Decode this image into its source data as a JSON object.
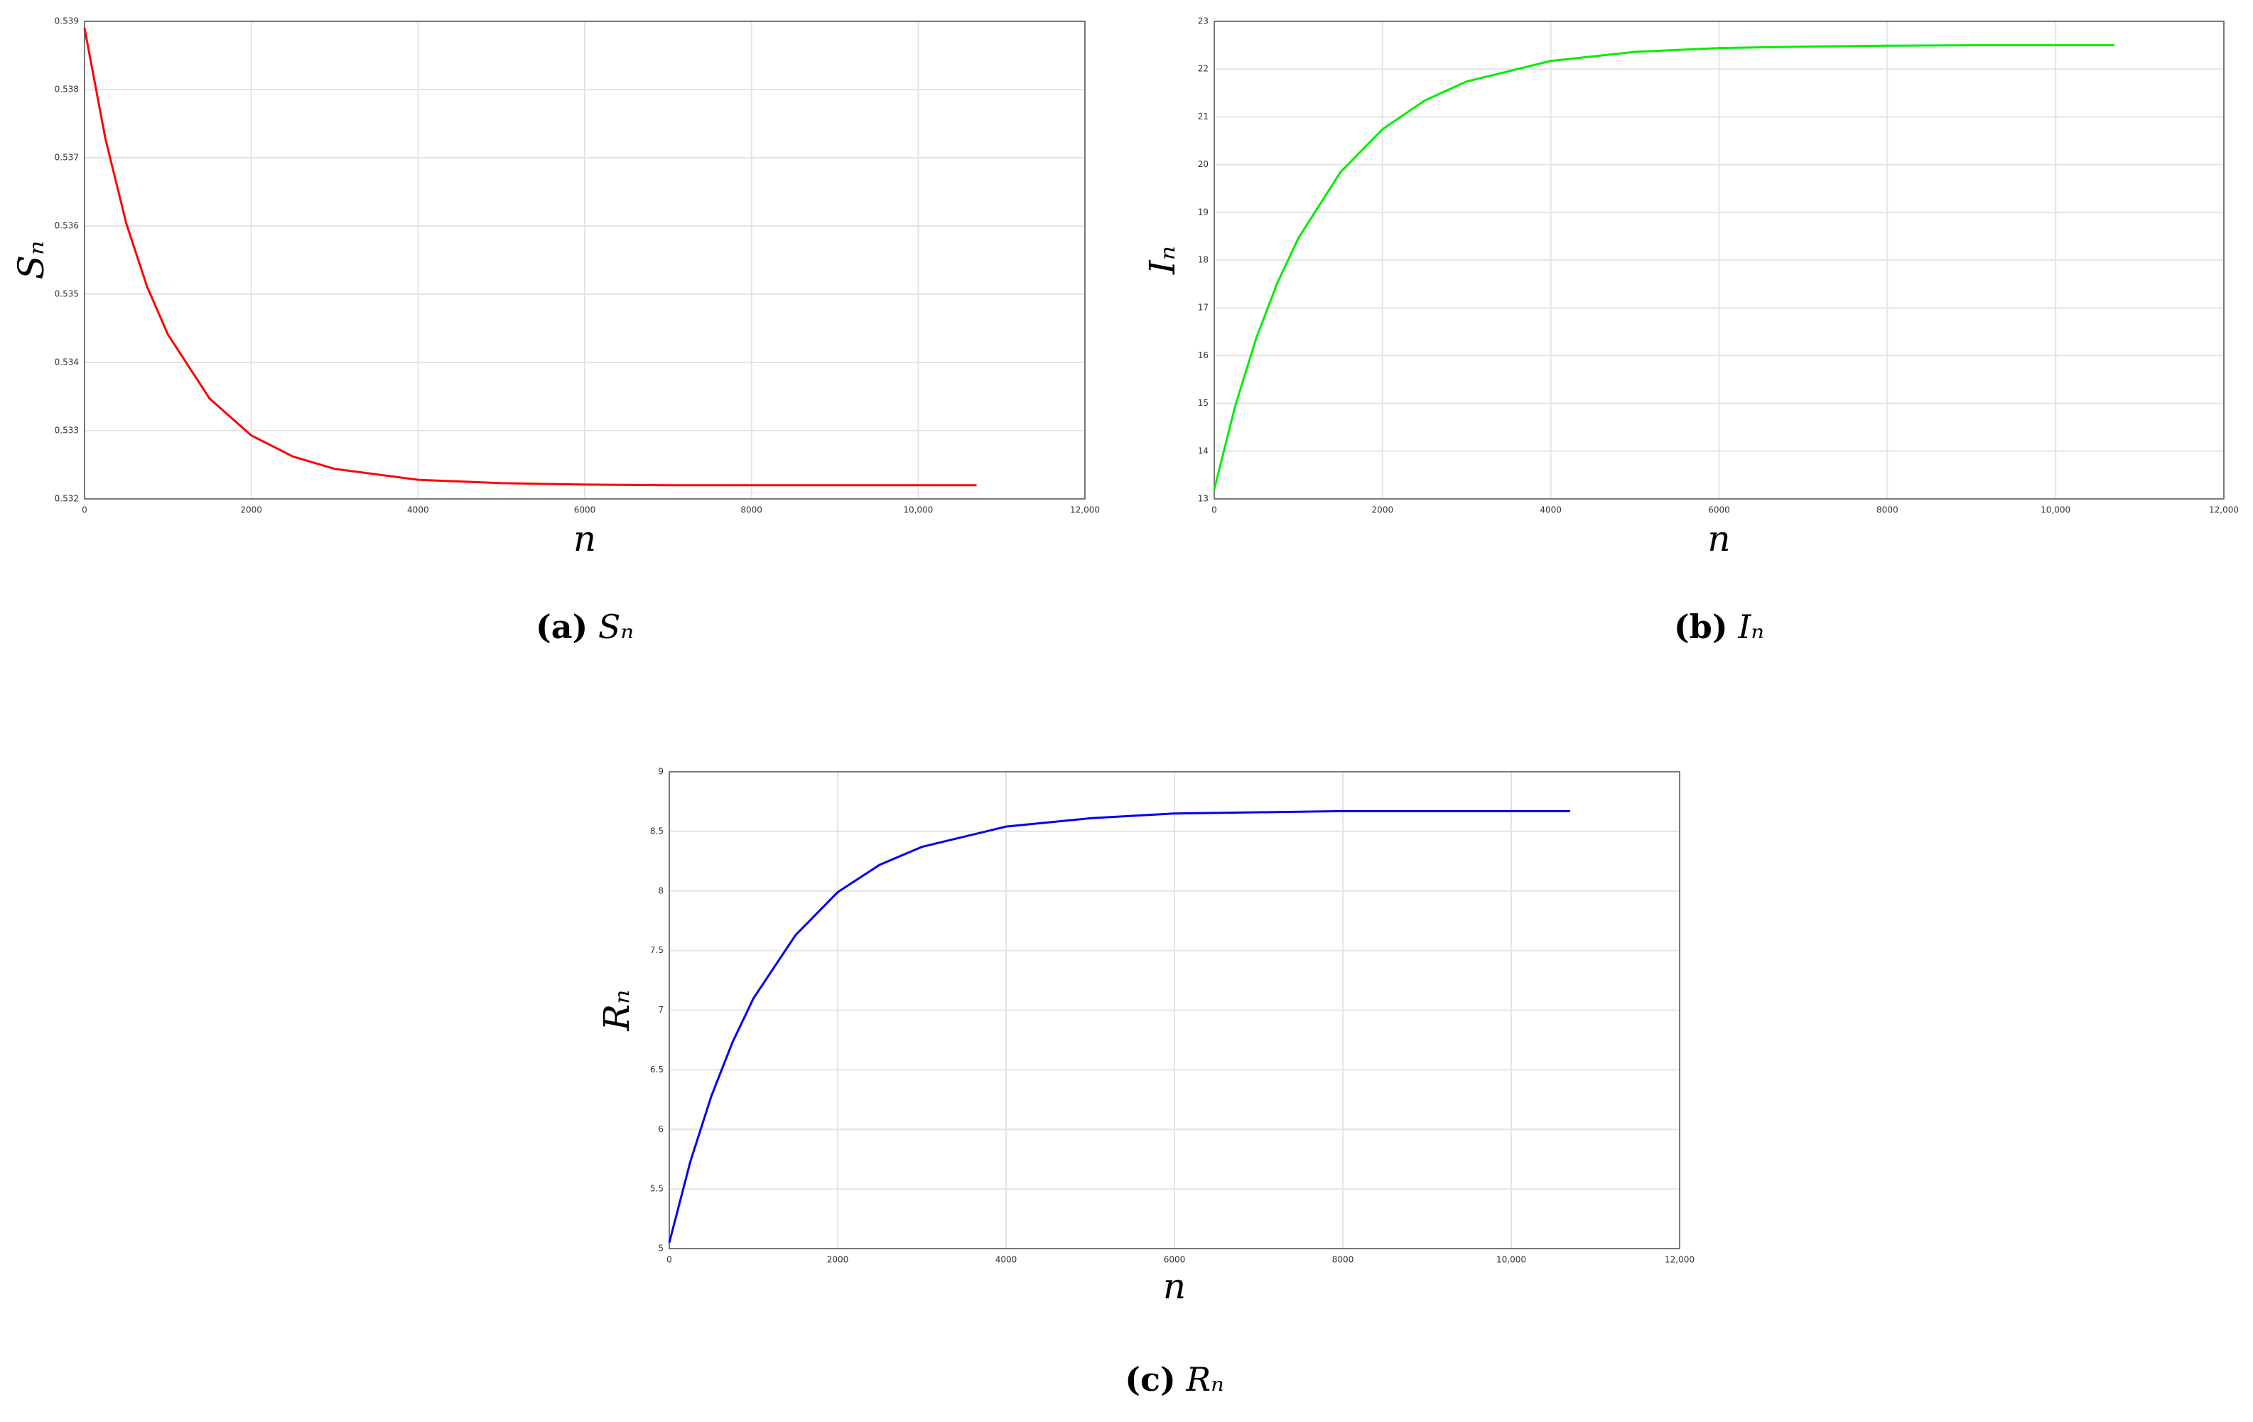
{
  "chart_data": [
    {
      "type": "line",
      "ylabel": "Sₙ",
      "xlabel": "n",
      "caption": {
        "label": "(a)",
        "text": "Sₙ"
      },
      "color": "#ff0000",
      "grid": true,
      "x": [
        0,
        250,
        500,
        750,
        1000,
        1500,
        2000,
        2500,
        3000,
        4000,
        5000,
        6000,
        7000,
        8000,
        9000,
        10000,
        10700
      ],
      "values": [
        0.5389,
        0.53728,
        0.53604,
        0.53511,
        0.53441,
        0.53347,
        0.53293,
        0.53262,
        0.53244,
        0.53228,
        0.53223,
        0.53221,
        0.5322,
        0.5322,
        0.5322,
        0.5322,
        0.5322
      ],
      "xlim": [
        0,
        12000
      ],
      "xticks": [
        0,
        2000,
        4000,
        6000,
        8000,
        {
          "value": 10000,
          "label": "10,000"
        },
        {
          "value": 12000,
          "label": "12,000"
        }
      ],
      "ylim": [
        0.532,
        0.539
      ],
      "yticks": [
        0.532,
        0.533,
        0.534,
        0.535,
        0.536,
        0.537,
        0.538,
        0.539
      ]
    },
    {
      "type": "line",
      "ylabel": "Iₙ",
      "xlabel": "n",
      "caption": {
        "label": "(b)",
        "text": "Iₙ"
      },
      "color": "#00ee00",
      "grid": true,
      "x": [
        0,
        250,
        500,
        750,
        1000,
        1500,
        2000,
        2500,
        3000,
        4000,
        5000,
        6000,
        7000,
        8000,
        9000,
        10000,
        10700
      ],
      "values": [
        13.2,
        14.95,
        16.37,
        17.52,
        18.46,
        19.84,
        20.74,
        21.34,
        21.74,
        22.17,
        22.36,
        22.44,
        22.47,
        22.49,
        22.5,
        22.5,
        22.5
      ],
      "xlim": [
        0,
        12000
      ],
      "xticks": [
        0,
        2000,
        4000,
        6000,
        8000,
        {
          "value": 10000,
          "label": "10,000"
        },
        {
          "value": 12000,
          "label": "12,000"
        }
      ],
      "ylim": [
        13,
        23
      ],
      "yticks": [
        13,
        14,
        15,
        16,
        17,
        18,
        19,
        20,
        21,
        22,
        23
      ]
    },
    {
      "type": "line",
      "ylabel": "Rₙ",
      "xlabel": "n",
      "caption": {
        "label": "(c)",
        "text": "Rₙ"
      },
      "color": "#0000ee",
      "grid": true,
      "x": [
        0,
        250,
        500,
        750,
        1000,
        1500,
        2000,
        2500,
        3000,
        4000,
        5000,
        6000,
        7000,
        8000,
        9000,
        10000,
        10700
      ],
      "values": [
        5.05,
        5.73,
        6.28,
        6.73,
        7.1,
        7.63,
        7.99,
        8.22,
        8.37,
        8.54,
        8.61,
        8.65,
        8.66,
        8.67,
        8.67,
        8.67,
        8.67
      ],
      "xlim": [
        0,
        12000
      ],
      "xticks": [
        0,
        2000,
        4000,
        6000,
        8000,
        {
          "value": 10000,
          "label": "10,000"
        },
        {
          "value": 12000,
          "label": "12,000"
        }
      ],
      "ylim": [
        5,
        9
      ],
      "yticks": [
        5,
        5.5,
        6,
        6.5,
        7,
        7.5,
        8,
        8.5,
        9
      ]
    }
  ]
}
